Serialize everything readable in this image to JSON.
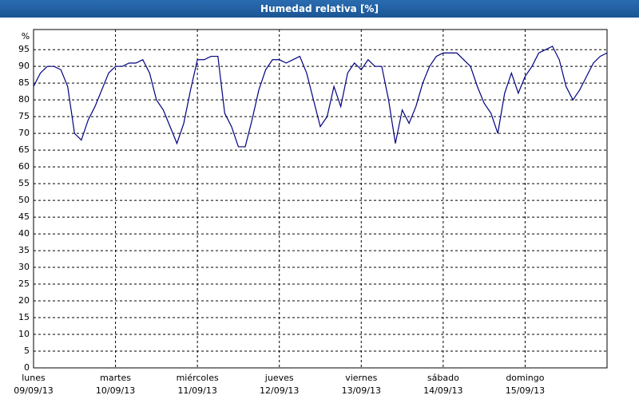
{
  "chart_data": {
    "type": "line",
    "title": "Humedad relativa [%]",
    "y_unit": "%",
    "x": [
      0,
      2,
      4,
      6,
      8,
      10,
      12,
      14,
      16,
      18,
      20,
      22,
      24,
      26,
      28,
      30,
      32,
      34,
      36,
      38,
      40,
      42,
      44,
      46,
      48,
      50,
      52,
      54,
      56,
      58,
      60,
      62,
      64,
      66,
      68,
      70,
      72,
      74,
      76,
      78,
      80,
      82,
      84,
      86,
      88,
      90,
      92,
      94,
      96,
      98,
      100,
      102,
      104,
      106,
      108,
      110,
      112,
      114,
      116,
      118,
      120,
      122,
      124,
      126,
      128,
      130,
      132,
      134,
      136,
      138,
      140,
      142,
      144,
      146,
      148,
      150,
      152,
      154,
      156,
      158,
      160,
      162,
      164,
      166,
      168
    ],
    "series": [
      {
        "name": "Humedad relativa",
        "color": "#000080",
        "values": [
          84,
          88,
          90,
          90,
          89,
          84,
          70,
          68,
          74,
          78,
          83,
          88,
          90,
          90,
          91,
          91,
          92,
          88,
          80,
          77,
          72,
          67,
          73,
          83,
          92,
          92,
          93,
          93,
          76,
          72,
          66,
          66,
          74,
          83,
          89,
          92,
          92,
          91,
          92,
          93,
          88,
          80,
          72,
          75,
          84,
          78,
          88,
          91,
          89,
          92,
          90,
          90,
          80,
          67,
          77,
          73,
          78,
          85,
          90,
          93,
          94,
          94,
          94,
          92,
          90,
          84,
          79,
          76,
          70,
          82,
          88,
          82,
          87,
          90,
          94,
          95,
          96,
          92,
          84,
          80,
          83,
          87,
          91,
          93,
          94
        ]
      }
    ],
    "xlim": [
      0,
      168
    ],
    "xticks": [
      {
        "value": 0,
        "label": "lunes"
      },
      {
        "value": 24,
        "label": "martes"
      },
      {
        "value": 48,
        "label": "miércoles"
      },
      {
        "value": 72,
        "label": "jueves"
      },
      {
        "value": 96,
        "label": "viernes"
      },
      {
        "value": 120,
        "label": "sábado"
      },
      {
        "value": 144,
        "label": "domingo"
      }
    ],
    "xtick_dates": [
      "09/09/13",
      "10/09/13",
      "11/09/13",
      "12/09/13",
      "13/09/13",
      "14/09/13",
      "15/09/13"
    ],
    "ylim": [
      0,
      101
    ],
    "yticks": [
      0,
      5,
      10,
      15,
      20,
      25,
      30,
      35,
      40,
      45,
      50,
      55,
      60,
      65,
      70,
      75,
      80,
      85,
      90,
      95
    ],
    "grid": true
  }
}
